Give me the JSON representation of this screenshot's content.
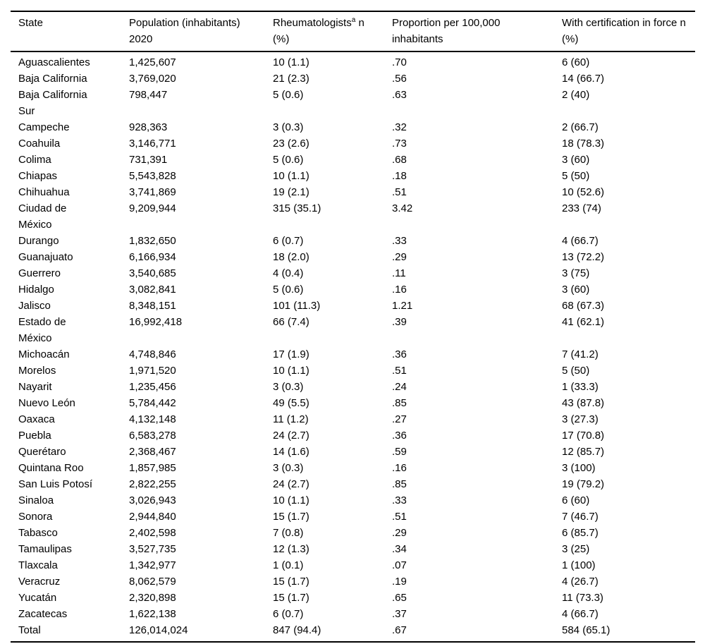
{
  "table": {
    "header": {
      "state": "State",
      "population": "Population (inhabitants)\n2020",
      "rheumatologists_base": "Rheumatologists",
      "rheumatologists_sup": "a",
      "rheumatologists_rest": " n\n(%)",
      "proportion": "Proportion per 100,000\ninhabitants",
      "certification": "With certification in force n\n(%)"
    },
    "rows": [
      {
        "state": "Aguascalientes",
        "population": "1,425,607",
        "rheumatologists": "10 (1.1)",
        "proportion": ".70",
        "proportion_bold": false,
        "certification": "6 (60)"
      },
      {
        "state": "Baja California",
        "population": "3,769,020",
        "rheumatologists": "21 (2.3)",
        "proportion": ".56",
        "proportion_bold": false,
        "certification": "14 (66.7)"
      },
      {
        "state": "Baja California\nSur",
        "population": "798,447",
        "rheumatologists": "5 (0.6)",
        "proportion": ".63",
        "proportion_bold": false,
        "certification": "2 (40)"
      },
      {
        "state": "Campeche",
        "population": "928,363",
        "rheumatologists": "3 (0.3)",
        "proportion": ".32",
        "proportion_bold": false,
        "certification": "2 (66.7)"
      },
      {
        "state": "Coahuila",
        "population": "3,146,771",
        "rheumatologists": "23 (2.6)",
        "proportion": ".73",
        "proportion_bold": false,
        "certification": "18 (78.3)"
      },
      {
        "state": "Colima",
        "population": "731,391",
        "rheumatologists": "5 (0.6)",
        "proportion": ".68",
        "proportion_bold": false,
        "certification": "3 (60)"
      },
      {
        "state": "Chiapas",
        "population": "5,543,828",
        "rheumatologists": "10 (1.1)",
        "proportion": ".18",
        "proportion_bold": false,
        "certification": "5 (50)"
      },
      {
        "state": "Chihuahua",
        "population": "3,741,869",
        "rheumatologists": "19 (2.1)",
        "proportion": ".51",
        "proportion_bold": false,
        "certification": "10 (52.6)"
      },
      {
        "state": "Ciudad de\nMéxico",
        "population": "9,209,944",
        "rheumatologists": "315 (35.1)",
        "proportion": "3.42",
        "proportion_bold": true,
        "certification": "233 (74)"
      },
      {
        "state": "Durango",
        "population": "1,832,650",
        "rheumatologists": "6 (0.7)",
        "proportion": ".33",
        "proportion_bold": false,
        "certification": "4 (66.7)"
      },
      {
        "state": "Guanajuato",
        "population": "6,166,934",
        "rheumatologists": "18 (2.0)",
        "proportion": ".29",
        "proportion_bold": false,
        "certification": "13 (72.2)"
      },
      {
        "state": "Guerrero",
        "population": "3,540,685",
        "rheumatologists": "4 (0.4)",
        "proportion": ".11",
        "proportion_bold": false,
        "certification": "3 (75)"
      },
      {
        "state": "Hidalgo",
        "population": "3,082,841",
        "rheumatologists": "5 (0.6)",
        "proportion": ".16",
        "proportion_bold": false,
        "certification": "3 (60)"
      },
      {
        "state": "Jalisco",
        "population": "8,348,151",
        "rheumatologists": "101 (11.3)",
        "proportion": "1.21",
        "proportion_bold": true,
        "certification": "68 (67.3)"
      },
      {
        "state": "Estado de\nMéxico",
        "population": "16,992,418",
        "rheumatologists": "66 (7.4)",
        "proportion": ".39",
        "proportion_bold": false,
        "certification": "41 (62.1)"
      },
      {
        "state": "Michoacán",
        "population": "4,748,846",
        "rheumatologists": "17 (1.9)",
        "proportion": ".36",
        "proportion_bold": false,
        "certification": "7 (41.2)"
      },
      {
        "state": "Morelos",
        "population": "1,971,520",
        "rheumatologists": "10 (1.1)",
        "proportion": ".51",
        "proportion_bold": false,
        "certification": "5 (50)"
      },
      {
        "state": "Nayarit",
        "population": "1,235,456",
        "rheumatologists": "3 (0.3)",
        "proportion": ".24",
        "proportion_bold": false,
        "certification": "1 (33.3)"
      },
      {
        "state": "Nuevo León",
        "population": "5,784,442",
        "rheumatologists": "49 (5.5)",
        "proportion": ".85",
        "proportion_bold": false,
        "certification": "43 (87.8)"
      },
      {
        "state": "Oaxaca",
        "population": "4,132,148",
        "rheumatologists": "11 (1.2)",
        "proportion": ".27",
        "proportion_bold": false,
        "certification": "3 (27.3)"
      },
      {
        "state": "Puebla",
        "population": "6,583,278",
        "rheumatologists": "24 (2.7)",
        "proportion": ".36",
        "proportion_bold": false,
        "certification": "17 (70.8)"
      },
      {
        "state": "Querétaro",
        "population": "2,368,467",
        "rheumatologists": "14 (1.6)",
        "proportion": ".59",
        "proportion_bold": false,
        "certification": "12 (85.7)"
      },
      {
        "state": "Quintana Roo",
        "population": "1,857,985",
        "rheumatologists": "3 (0.3)",
        "proportion": ".16",
        "proportion_bold": false,
        "certification": "3 (100)"
      },
      {
        "state": "San Luis Potosí",
        "population": "2,822,255",
        "rheumatologists": "24 (2.7)",
        "proportion": ".85",
        "proportion_bold": false,
        "certification": "19 (79.2)"
      },
      {
        "state": "Sinaloa",
        "population": "3,026,943",
        "rheumatologists": "10 (1.1)",
        "proportion": ".33",
        "proportion_bold": false,
        "certification": "6 (60)"
      },
      {
        "state": "Sonora",
        "population": "2,944,840",
        "rheumatologists": "15 (1.7)",
        "proportion": ".51",
        "proportion_bold": false,
        "certification": "7 (46.7)"
      },
      {
        "state": "Tabasco",
        "population": "2,402,598",
        "rheumatologists": "7 (0.8)",
        "proportion": ".29",
        "proportion_bold": false,
        "certification": "6 (85.7)"
      },
      {
        "state": "Tamaulipas",
        "population": "3,527,735",
        "rheumatologists": "12 (1.3)",
        "proportion": ".34",
        "proportion_bold": false,
        "certification": "3 (25)"
      },
      {
        "state": "Tlaxcala",
        "population": "1,342,977",
        "rheumatologists": "1 (0.1)",
        "proportion": ".07",
        "proportion_bold": false,
        "certification": "1 (100)"
      },
      {
        "state": "Veracruz",
        "population": "8,062,579",
        "rheumatologists": "15 (1.7)",
        "proportion": ".19",
        "proportion_bold": false,
        "certification": "4 (26.7)"
      },
      {
        "state": "Yucatán",
        "population": "2,320,898",
        "rheumatologists": "15 (1.7)",
        "proportion": ".65",
        "proportion_bold": false,
        "certification": "11 (73.3)"
      },
      {
        "state": "Zacatecas",
        "population": "1,622,138",
        "rheumatologists": "6 (0.7)",
        "proportion": ".37",
        "proportion_bold": false,
        "certification": "4 (66.7)"
      },
      {
        "state": "Total",
        "population": "126,014,024",
        "rheumatologists": "847 (94.4)",
        "proportion": ".67",
        "proportion_bold": false,
        "certification": "584 (65.1)"
      }
    ]
  }
}
